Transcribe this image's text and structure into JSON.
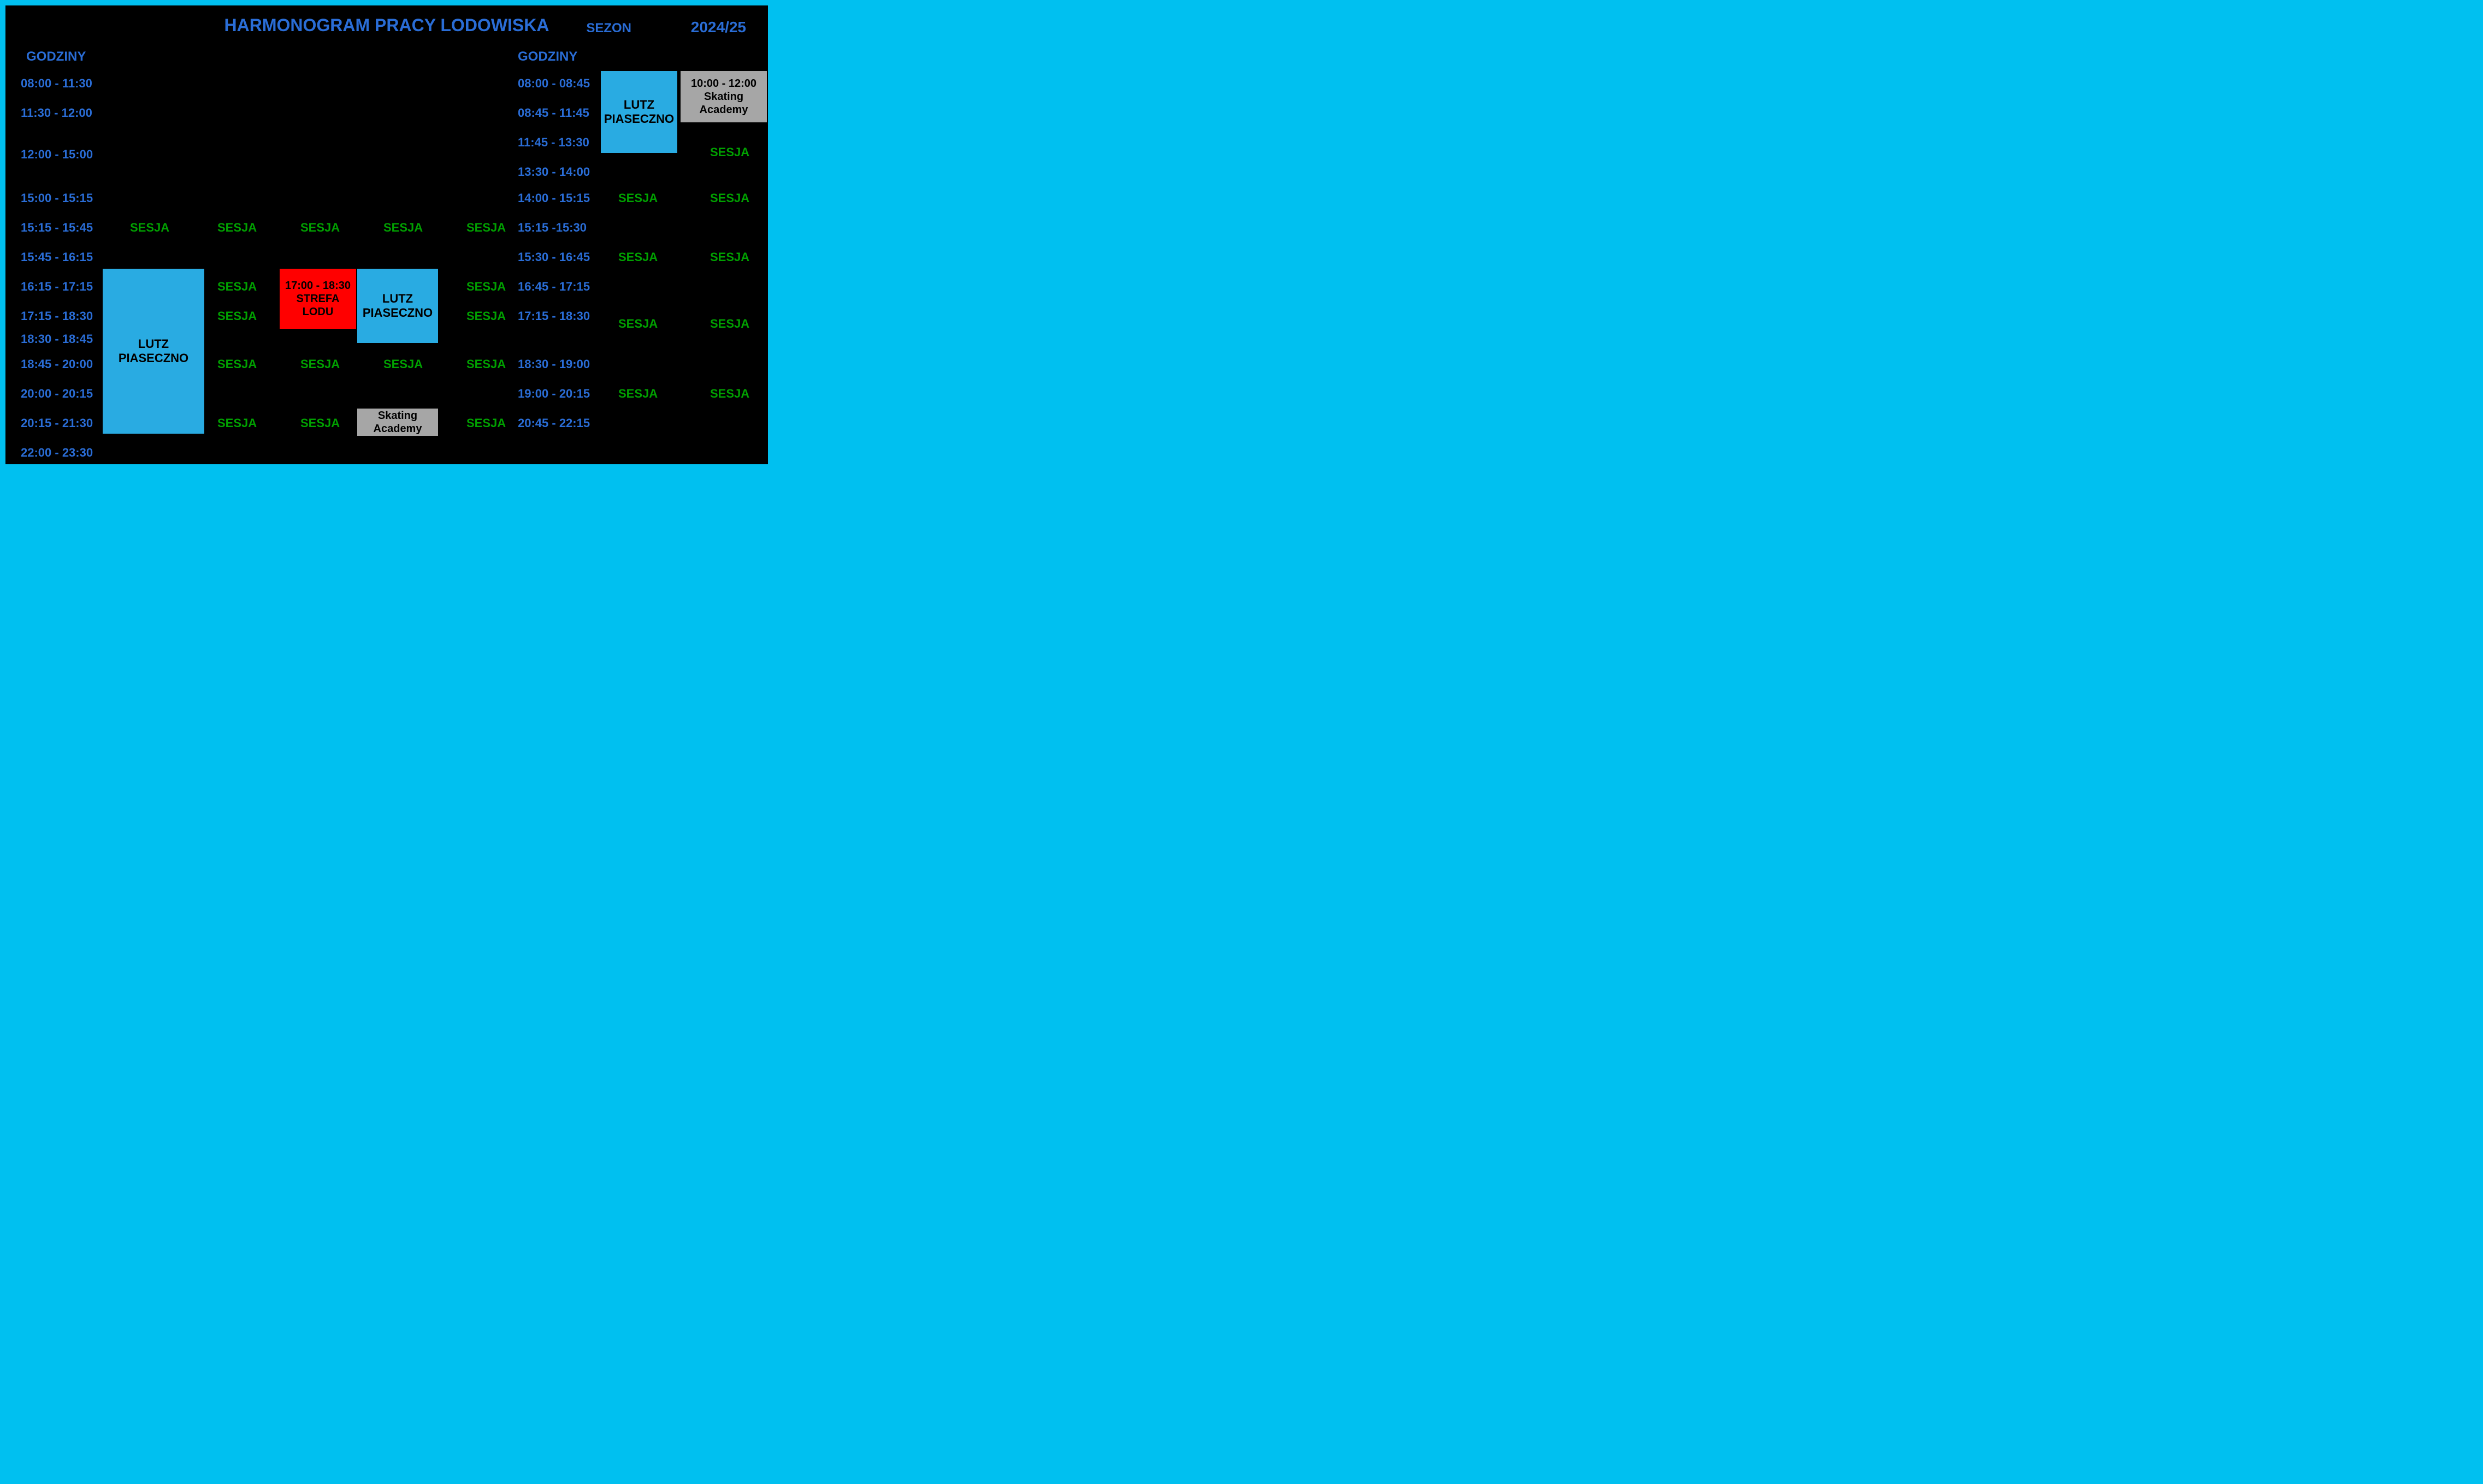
{
  "title": "HARMONOGRAM PRACY LODOWISKA",
  "season_label": "SEZON",
  "season_year": "2024/25",
  "header_left": "GODZINY",
  "header_right": "GODZINY",
  "left_times": [
    "08:00 - 11:30",
    "11:30 - 12:00",
    "12:00 - 15:00",
    "15:00 - 15:15",
    "15:15 - 15:45",
    "15:45 - 16:15",
    "16:15 - 17:15",
    "17:15 - 18:30",
    "18:30 - 18:45",
    "18:45 - 20:00",
    "20:00 - 20:15",
    "20:15 - 21:30",
    "22:00 - 23:30"
  ],
  "right_times": [
    "08:00 - 08:45",
    "08:45 - 11:45",
    "11:45 - 13:30",
    "13:30 - 14:00",
    "14:00 - 15:15",
    "15:15 -15:30",
    "15:30 - 16:45",
    "16:45 - 17:15",
    "17:15 - 18:30",
    "18:30 - 19:00",
    "19:00 - 20:15",
    "20:45 - 22:15"
  ],
  "sesja_label": "SESJA",
  "lutz_label": "LUTZ PIASECZNO",
  "strefa_time": "17:00 - 18:30",
  "strefa_label": "STREFA LODU",
  "skating_label": "Skating Academy",
  "skating_top_time": "10:00 - 12:00",
  "colors": {
    "blue_text": "#2a6dd6",
    "green": "#00a000",
    "lutz_bg": "#29abe2",
    "red": "#ff0000",
    "grey": "#a6a6a6",
    "bg": "#000000",
    "outer": "#00c0f0"
  }
}
